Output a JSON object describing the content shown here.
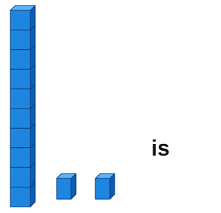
{
  "text": "is"
}
